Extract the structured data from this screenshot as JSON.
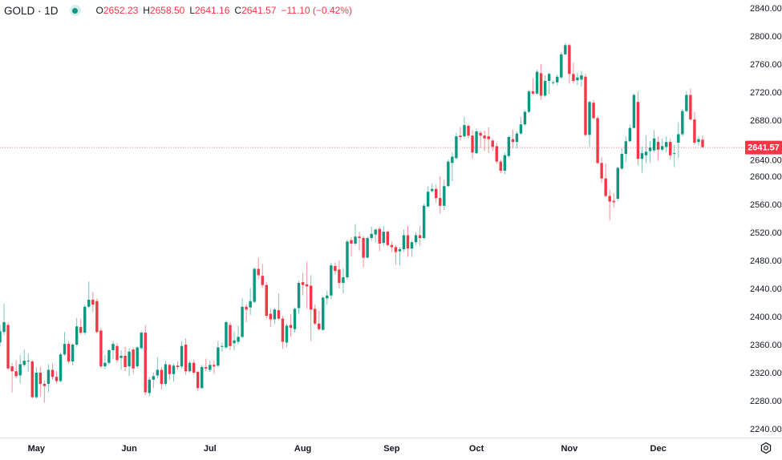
{
  "header": {
    "symbol": "GOLD · 1D",
    "open_label": "O",
    "open": "2652.23",
    "high_label": "H",
    "high": "2658.50",
    "low_label": "L",
    "low": "2641.16",
    "close_label": "C",
    "close": "2641.57",
    "change": "−11.10 (−0.42%)",
    "status_icon": "market-open-dot-icon"
  },
  "colors": {
    "up": "#089981",
    "down": "#f23645",
    "grid_text": "#131722",
    "price_line": "#f23645"
  },
  "settings_icon": "gear-icon",
  "chart_data": {
    "type": "candlestick",
    "symbol": "GOLD",
    "interval": "1D",
    "ylim": [
      2220,
      2850
    ],
    "yticks": [
      "2240.00",
      "2280.00",
      "2320.00",
      "2360.00",
      "2400.00",
      "2440.00",
      "2480.00",
      "2520.00",
      "2560.00",
      "2600.00",
      "2640.00",
      "2680.00",
      "2720.00",
      "2760.00",
      "2800.00",
      "2840.00"
    ],
    "x_month_labels": [
      {
        "label": "May",
        "bar": 9
      },
      {
        "label": "Jun",
        "bar": 32
      },
      {
        "label": "Jul",
        "bar": 52
      },
      {
        "label": "Aug",
        "bar": 75
      },
      {
        "label": "Sep",
        "bar": 97
      },
      {
        "label": "Oct",
        "bar": 118
      },
      {
        "label": "Nov",
        "bar": 141
      },
      {
        "label": "Dec",
        "bar": 163
      }
    ],
    "last_price": "2641.57",
    "grid": false,
    "ohlc_fields": [
      "open",
      "high",
      "low",
      "close"
    ],
    "candles": [
      [
        2363,
        2388,
        2357,
        2379
      ],
      [
        2378,
        2418,
        2373,
        2392
      ],
      [
        2388,
        2392,
        2324,
        2326
      ],
      [
        2329,
        2334,
        2292,
        2322
      ],
      [
        2322,
        2338,
        2312,
        2315
      ],
      [
        2316,
        2345,
        2305,
        2332
      ],
      [
        2331,
        2353,
        2328,
        2337
      ],
      [
        2336,
        2347,
        2321,
        2337
      ],
      [
        2336,
        2338,
        2283,
        2285
      ],
      [
        2285,
        2328,
        2283,
        2320
      ],
      [
        2320,
        2328,
        2286,
        2304
      ],
      [
        2304,
        2309,
        2277,
        2301
      ],
      [
        2304,
        2332,
        2292,
        2324
      ],
      [
        2324,
        2333,
        2310,
        2314
      ],
      [
        2314,
        2322,
        2305,
        2308
      ],
      [
        2308,
        2348,
        2306,
        2346
      ],
      [
        2346,
        2378,
        2344,
        2361
      ],
      [
        2361,
        2365,
        2333,
        2336
      ],
      [
        2336,
        2362,
        2330,
        2360
      ],
      [
        2360,
        2398,
        2357,
        2386
      ],
      [
        2385,
        2397,
        2374,
        2377
      ],
      [
        2377,
        2417,
        2374,
        2414
      ],
      [
        2414,
        2450,
        2412,
        2424
      ],
      [
        2424,
        2435,
        2406,
        2417
      ],
      [
        2422,
        2426,
        2376,
        2378
      ],
      [
        2380,
        2384,
        2326,
        2329
      ],
      [
        2329,
        2345,
        2325,
        2334
      ],
      [
        2334,
        2353,
        2331,
        2352
      ],
      [
        2352,
        2365,
        2339,
        2361
      ],
      [
        2358,
        2362,
        2334,
        2338
      ],
      [
        2341,
        2352,
        2324,
        2344
      ],
      [
        2344,
        2357,
        2322,
        2328
      ],
      [
        2329,
        2355,
        2315,
        2350
      ],
      [
        2353,
        2356,
        2318,
        2326
      ],
      [
        2329,
        2358,
        2326,
        2356
      ],
      [
        2355,
        2379,
        2353,
        2377
      ],
      [
        2377,
        2388,
        2288,
        2292
      ],
      [
        2291,
        2314,
        2286,
        2310
      ],
      [
        2310,
        2320,
        2298,
        2315
      ],
      [
        2316,
        2342,
        2312,
        2324
      ],
      [
        2324,
        2328,
        2296,
        2304
      ],
      [
        2304,
        2337,
        2301,
        2332
      ],
      [
        2331,
        2333,
        2310,
        2318
      ],
      [
        2318,
        2333,
        2307,
        2330
      ],
      [
        2330,
        2336,
        2324,
        2328
      ],
      [
        2329,
        2365,
        2326,
        2358
      ],
      [
        2360,
        2369,
        2317,
        2322
      ],
      [
        2322,
        2337,
        2320,
        2334
      ],
      [
        2334,
        2338,
        2317,
        2320
      ],
      [
        2321,
        2323,
        2294,
        2298
      ],
      [
        2298,
        2331,
        2297,
        2328
      ],
      [
        2328,
        2340,
        2322,
        2326
      ],
      [
        2324,
        2337,
        2321,
        2331
      ],
      [
        2331,
        2337,
        2318,
        2329
      ],
      [
        2330,
        2365,
        2328,
        2356
      ],
      [
        2357,
        2363,
        2350,
        2358
      ],
      [
        2356,
        2394,
        2354,
        2392
      ],
      [
        2388,
        2392,
        2352,
        2358
      ],
      [
        2362,
        2379,
        2352,
        2366
      ],
      [
        2364,
        2387,
        2360,
        2371
      ],
      [
        2371,
        2426,
        2369,
        2414
      ],
      [
        2414,
        2418,
        2392,
        2410
      ],
      [
        2413,
        2441,
        2402,
        2422
      ],
      [
        2421,
        2470,
        2419,
        2468
      ],
      [
        2468,
        2484,
        2453,
        2459
      ],
      [
        2458,
        2475,
        2441,
        2445
      ],
      [
        2445,
        2449,
        2398,
        2401
      ],
      [
        2404,
        2411,
        2385,
        2396
      ],
      [
        2396,
        2412,
        2389,
        2410
      ],
      [
        2409,
        2433,
        2395,
        2397
      ],
      [
        2397,
        2401,
        2354,
        2364
      ],
      [
        2363,
        2390,
        2356,
        2387
      ],
      [
        2388,
        2403,
        2371,
        2384
      ],
      [
        2382,
        2413,
        2377,
        2411
      ],
      [
        2412,
        2451,
        2404,
        2448
      ],
      [
        2449,
        2462,
        2430,
        2445
      ],
      [
        2446,
        2478,
        2411,
        2443
      ],
      [
        2444,
        2459,
        2365,
        2410
      ],
      [
        2411,
        2417,
        2388,
        2390
      ],
      [
        2390,
        2408,
        2380,
        2382
      ],
      [
        2381,
        2429,
        2380,
        2427
      ],
      [
        2426,
        2437,
        2417,
        2430
      ],
      [
        2430,
        2477,
        2425,
        2473
      ],
      [
        2472,
        2477,
        2460,
        2465
      ],
      [
        2467,
        2480,
        2440,
        2448
      ],
      [
        2448,
        2469,
        2433,
        2456
      ],
      [
        2456,
        2510,
        2453,
        2507
      ],
      [
        2509,
        2513,
        2486,
        2504
      ],
      [
        2504,
        2532,
        2501,
        2514
      ],
      [
        2514,
        2521,
        2494,
        2512
      ],
      [
        2512,
        2515,
        2470,
        2484
      ],
      [
        2484,
        2514,
        2483,
        2512
      ],
      [
        2512,
        2528,
        2508,
        2518
      ],
      [
        2517,
        2526,
        2506,
        2524
      ],
      [
        2525,
        2528,
        2493,
        2504
      ],
      [
        2505,
        2529,
        2501,
        2521
      ],
      [
        2521,
        2523,
        2500,
        2502
      ],
      [
        2502,
        2507,
        2492,
        2499
      ],
      [
        2499,
        2502,
        2474,
        2492
      ],
      [
        2493,
        2499,
        2473,
        2496
      ],
      [
        2496,
        2524,
        2492,
        2516
      ],
      [
        2516,
        2529,
        2485,
        2497
      ],
      [
        2497,
        2508,
        2485,
        2506
      ],
      [
        2506,
        2520,
        2502,
        2516
      ],
      [
        2516,
        2529,
        2501,
        2512
      ],
      [
        2512,
        2561,
        2510,
        2558
      ],
      [
        2557,
        2586,
        2556,
        2578
      ],
      [
        2579,
        2590,
        2577,
        2582
      ],
      [
        2582,
        2588,
        2562,
        2569
      ],
      [
        2569,
        2600,
        2547,
        2558
      ],
      [
        2558,
        2595,
        2552,
        2586
      ],
      [
        2586,
        2624,
        2585,
        2621
      ],
      [
        2619,
        2634,
        2593,
        2628
      ],
      [
        2626,
        2662,
        2624,
        2657
      ],
      [
        2658,
        2670,
        2651,
        2656
      ],
      [
        2657,
        2685,
        2654,
        2673
      ],
      [
        2672,
        2675,
        2654,
        2658
      ],
      [
        2658,
        2666,
        2625,
        2634
      ],
      [
        2633,
        2668,
        2632,
        2664
      ],
      [
        2662,
        2665,
        2640,
        2658
      ],
      [
        2658,
        2665,
        2636,
        2654
      ],
      [
        2657,
        2670,
        2633,
        2653
      ],
      [
        2651,
        2654,
        2636,
        2642
      ],
      [
        2643,
        2648,
        2618,
        2621
      ],
      [
        2621,
        2624,
        2605,
        2608
      ],
      [
        2608,
        2634,
        2603,
        2630
      ],
      [
        2629,
        2658,
        2627,
        2656
      ],
      [
        2653,
        2667,
        2640,
        2649
      ],
      [
        2649,
        2664,
        2640,
        2661
      ],
      [
        2661,
        2685,
        2659,
        2674
      ],
      [
        2674,
        2694,
        2672,
        2692
      ],
      [
        2692,
        2723,
        2690,
        2721
      ],
      [
        2721,
        2740,
        2716,
        2718
      ],
      [
        2718,
        2752,
        2716,
        2749
      ],
      [
        2747,
        2760,
        2709,
        2715
      ],
      [
        2715,
        2744,
        2713,
        2736
      ],
      [
        2736,
        2748,
        2717,
        2746
      ],
      [
        2733,
        2737,
        2731,
        2734
      ],
      [
        2734,
        2745,
        2730,
        2742
      ],
      [
        2741,
        2777,
        2739,
        2774
      ],
      [
        2774,
        2790,
        2773,
        2787
      ],
      [
        2787,
        2789,
        2732,
        2746
      ],
      [
        2746,
        2762,
        2732,
        2736
      ],
      [
        2737,
        2748,
        2730,
        2741
      ],
      [
        2738,
        2750,
        2728,
        2744
      ],
      [
        2742,
        2746,
        2657,
        2659
      ],
      [
        2659,
        2708,
        2642,
        2706
      ],
      [
        2705,
        2709,
        2681,
        2683
      ],
      [
        2683,
        2686,
        2617,
        2619
      ],
      [
        2619,
        2627,
        2590,
        2597
      ],
      [
        2597,
        2618,
        2570,
        2572
      ],
      [
        2572,
        2581,
        2537,
        2564
      ],
      [
        2565,
        2576,
        2555,
        2563
      ],
      [
        2568,
        2614,
        2565,
        2612
      ],
      [
        2611,
        2640,
        2609,
        2632
      ],
      [
        2632,
        2657,
        2620,
        2650
      ],
      [
        2650,
        2674,
        2649,
        2669
      ],
      [
        2669,
        2718,
        2668,
        2716
      ],
      [
        2706,
        2721,
        2616,
        2625
      ],
      [
        2625,
        2642,
        2605,
        2633
      ],
      [
        2630,
        2658,
        2619,
        2635
      ],
      [
        2636,
        2650,
        2620,
        2641
      ],
      [
        2637,
        2666,
        2634,
        2654
      ],
      [
        2649,
        2657,
        2622,
        2638
      ],
      [
        2638,
        2654,
        2636,
        2643
      ],
      [
        2642,
        2657,
        2634,
        2649
      ],
      [
        2649,
        2654,
        2624,
        2630
      ],
      [
        2632,
        2645,
        2613,
        2633
      ],
      [
        2648,
        2677,
        2626,
        2660
      ],
      [
        2660,
        2696,
        2657,
        2693
      ],
      [
        2693,
        2721,
        2691,
        2716
      ],
      [
        2716,
        2725,
        2680,
        2681
      ],
      [
        2681,
        2692,
        2645,
        2648
      ],
      [
        2649,
        2657,
        2644,
        2653
      ],
      [
        2652.23,
        2658.5,
        2641.16,
        2641.57
      ]
    ]
  }
}
